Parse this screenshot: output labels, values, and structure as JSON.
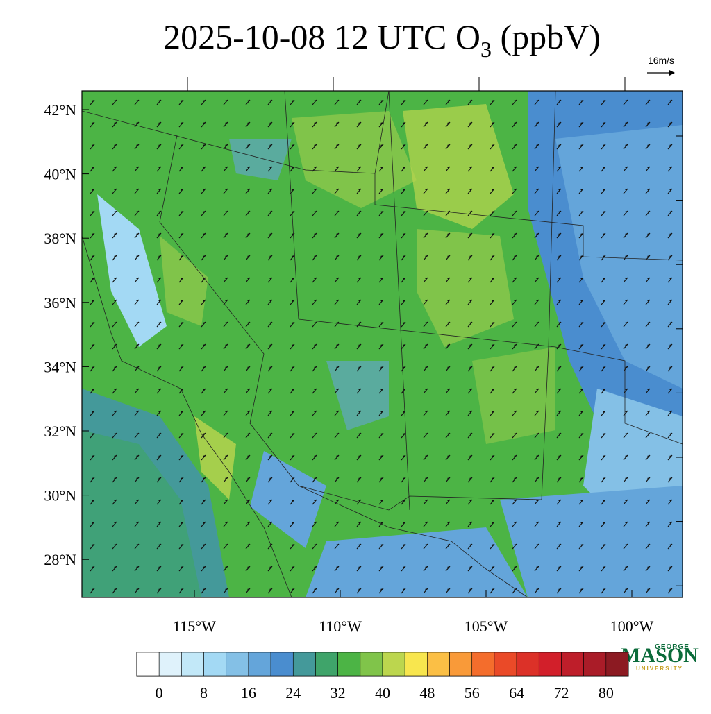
{
  "header": {
    "title_main": "2025-10-08 12 UTC O",
    "title_sub": "3",
    "title_unit": " (ppbV)",
    "wind_scale": "16m/s"
  },
  "map": {
    "lat_ticks": [
      {
        "value": 42,
        "label": "42°N"
      },
      {
        "value": 40,
        "label": "40°N"
      },
      {
        "value": 38,
        "label": "38°N"
      },
      {
        "value": 36,
        "label": "36°N"
      },
      {
        "value": 34,
        "label": "34°N"
      },
      {
        "value": 32,
        "label": "32°N"
      },
      {
        "value": 30,
        "label": "30°N"
      },
      {
        "value": 28,
        "label": "28°N"
      }
    ],
    "lon_ticks": [
      {
        "value": -115,
        "label": "115°W"
      },
      {
        "value": -110,
        "label": "110°W"
      },
      {
        "value": -105,
        "label": "105°W"
      },
      {
        "value": -100,
        "label": "100°W"
      }
    ]
  },
  "colorbar": {
    "lim": [
      -4,
      84
    ],
    "ticks": [
      0,
      8,
      16,
      24,
      32,
      40,
      48,
      56,
      64,
      72,
      80
    ],
    "colors": [
      "#ffffff",
      "#dff2fb",
      "#c2e8f8",
      "#a3d9f4",
      "#84c0e6",
      "#64a5da",
      "#4a8dcf",
      "#44999a",
      "#3fa46a",
      "#4cb445",
      "#80c44a",
      "#bcd64e",
      "#f8e64e",
      "#fbbf45",
      "#f99a39",
      "#f46d2c",
      "#ea4a28",
      "#dc3128",
      "#d21f2a",
      "#be1e2a",
      "#aa1c28",
      "#8c1a22"
    ]
  },
  "logo": {
    "top": "GEORGE",
    "name": "MASON",
    "bottom": "UNIVERSITY"
  }
}
